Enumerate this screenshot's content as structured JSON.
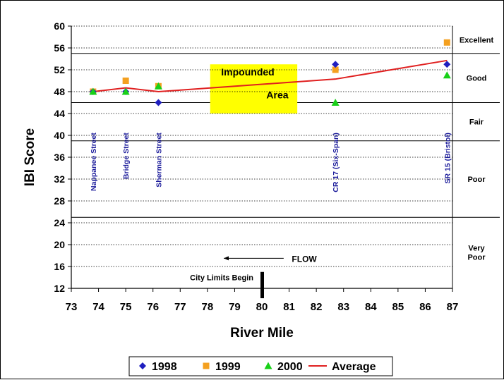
{
  "chart_data": {
    "type": "scatter",
    "xlabel": "River Mile",
    "ylabel": "IBI Score",
    "xlim": [
      73,
      87
    ],
    "ylim": [
      12,
      60
    ],
    "xticks": [
      "73",
      "74",
      "75",
      "76",
      "77",
      "78",
      "79",
      "80",
      "81",
      "82",
      "83",
      "84",
      "85",
      "86",
      "87"
    ],
    "yticks": [
      "12",
      "16",
      "20",
      "24",
      "28",
      "32",
      "36",
      "40",
      "44",
      "48",
      "52",
      "56",
      "60"
    ],
    "grid": "dotted horizontal",
    "legend_position": "bottom",
    "series": [
      {
        "name": "1998",
        "marker": "diamond",
        "color": "#1f1fbf",
        "points": [
          [
            73.8,
            48
          ],
          [
            75.0,
            48
          ],
          [
            76.2,
            46
          ],
          [
            82.7,
            53
          ],
          [
            86.8,
            53
          ]
        ]
      },
      {
        "name": "1999",
        "marker": "square",
        "color": "#f4a020",
        "points": [
          [
            73.8,
            48
          ],
          [
            75.0,
            50
          ],
          [
            76.2,
            49
          ],
          [
            82.7,
            52
          ],
          [
            86.8,
            57
          ]
        ]
      },
      {
        "name": "2000",
        "marker": "triangle",
        "color": "#18d018",
        "points": [
          [
            73.8,
            48
          ],
          [
            75.0,
            48
          ],
          [
            76.2,
            49
          ],
          [
            82.7,
            46
          ],
          [
            86.8,
            51
          ]
        ]
      },
      {
        "name": "Average",
        "marker": "line",
        "color": "#e02020",
        "points": [
          [
            73.8,
            48
          ],
          [
            75.0,
            48.7
          ],
          [
            76.2,
            48
          ],
          [
            82.7,
            50.3
          ],
          [
            86.8,
            53.7
          ]
        ]
      }
    ],
    "category_bands": [
      {
        "label": "Excellent",
        "from": 55,
        "to": 60
      },
      {
        "label": "Good",
        "from": 46,
        "to": 55
      },
      {
        "label": "Fair",
        "from": 39,
        "to": 46
      },
      {
        "label": "Poor",
        "from": 25,
        "to": 39
      },
      {
        "label": "Very Poor",
        "lines": [
          "Very",
          "Poor"
        ],
        "from": 12,
        "to": 25
      }
    ],
    "site_labels": [
      {
        "text": "Nappanee Street",
        "x": 73.8
      },
      {
        "text": "Bridge Street",
        "x": 75.0
      },
      {
        "text": "Sherman Street",
        "x": 76.2
      },
      {
        "text": "CR 17 (Six-Span)",
        "x": 82.7
      },
      {
        "text": "SR 15 (Bristol)",
        "x": 86.8
      }
    ],
    "impounded_area": {
      "x_from": 78.1,
      "x_to": 81.3,
      "y_from": 44,
      "y_to": 53,
      "color": "#ffff00",
      "label_top": "Impounded",
      "label_bottom": "Area"
    },
    "flow_label": "FLOW",
    "city_limits": {
      "x": 80,
      "label": "City Limits Begin"
    }
  }
}
